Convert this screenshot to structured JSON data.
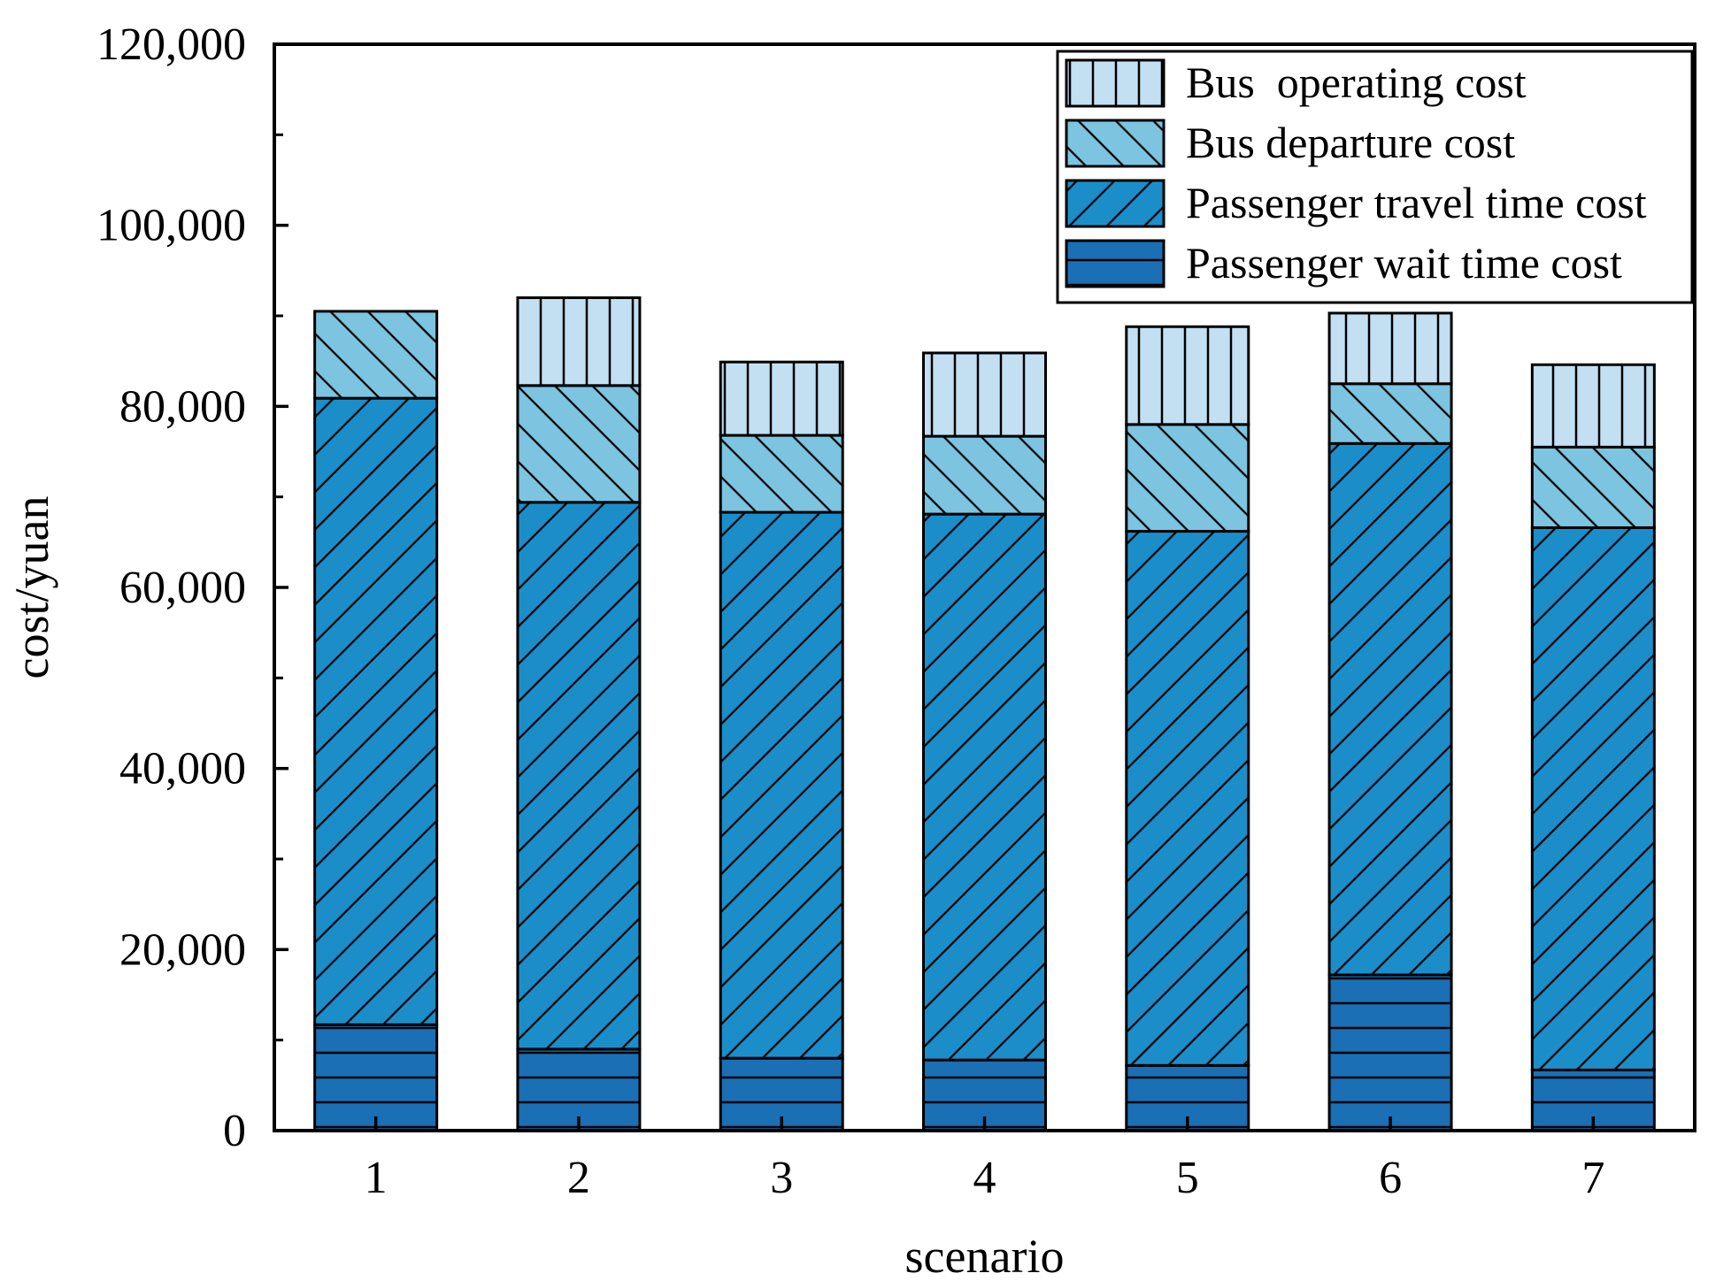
{
  "chart_data": {
    "type": "bar",
    "stacked": true,
    "title": "",
    "xlabel": "scenario",
    "ylabel": "cost/yuan",
    "categories": [
      "1",
      "2",
      "3",
      "4",
      "5",
      "6",
      "7"
    ],
    "ylim": [
      0,
      120000
    ],
    "yticks": [
      0,
      20000,
      40000,
      60000,
      80000,
      100000,
      120000
    ],
    "ytick_labels": [
      "0",
      "20,000",
      "40,000",
      "60,000",
      "80,000",
      "100,000",
      "120,000"
    ],
    "legend_position": "top-right",
    "grid": false,
    "series": [
      {
        "name": "Passenger wait time cost",
        "color": "#1a6fb5",
        "pattern": "horizontal",
        "values": [
          11700,
          9000,
          8000,
          7800,
          7200,
          17200,
          6700
        ]
      },
      {
        "name": "Passenger travel time cost",
        "color": "#1b8ec9",
        "pattern": "forward-diagonal",
        "values": [
          69200,
          60400,
          60300,
          60300,
          59000,
          58700,
          59900
        ]
      },
      {
        "name": "Bus departure cost",
        "color": "#7cc4e0",
        "pattern": "back-diagonal",
        "values": [
          9600,
          12900,
          8500,
          8600,
          11800,
          6600,
          8900
        ]
      },
      {
        "name": "Bus  operating cost",
        "color": "#c3dff2",
        "pattern": "vertical",
        "values": [
          0,
          9700,
          8100,
          9200,
          10800,
          7800,
          9100
        ]
      }
    ],
    "legend_order": [
      "Bus  operating cost",
      "Bus departure cost",
      "Passenger travel time cost",
      "Passenger wait time cost"
    ]
  }
}
